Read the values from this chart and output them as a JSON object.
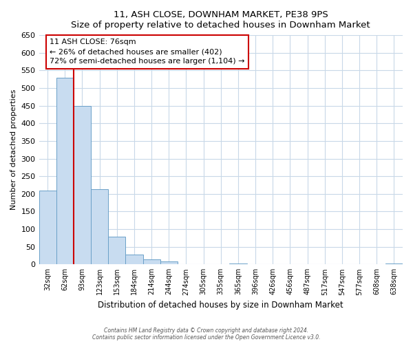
{
  "title": "11, ASH CLOSE, DOWNHAM MARKET, PE38 9PS",
  "subtitle": "Size of property relative to detached houses in Downham Market",
  "xlabel": "Distribution of detached houses by size in Downham Market",
  "ylabel": "Number of detached properties",
  "bin_labels": [
    "32sqm",
    "62sqm",
    "93sqm",
    "123sqm",
    "153sqm",
    "184sqm",
    "214sqm",
    "244sqm",
    "274sqm",
    "305sqm",
    "335sqm",
    "365sqm",
    "396sqm",
    "426sqm",
    "456sqm",
    "487sqm",
    "517sqm",
    "547sqm",
    "577sqm",
    "608sqm",
    "638sqm"
  ],
  "bar_heights": [
    210,
    530,
    450,
    213,
    78,
    27,
    14,
    8,
    0,
    0,
    0,
    3,
    0,
    0,
    0,
    0,
    0,
    1,
    0,
    0,
    2
  ],
  "bar_color": "#c8dcf0",
  "bar_edge_color": "#6aa0c8",
  "property_line_x": 1.5,
  "annotation_title": "11 ASH CLOSE: 76sqm",
  "annotation_line1": "← 26% of detached houses are smaller (402)",
  "annotation_line2": "72% of semi-detached houses are larger (1,104) →",
  "annotation_box_facecolor": "#ffffff",
  "annotation_box_edgecolor": "#cc0000",
  "vline_color": "#cc0000",
  "ylim": [
    0,
    650
  ],
  "yticks": [
    0,
    50,
    100,
    150,
    200,
    250,
    300,
    350,
    400,
    450,
    500,
    550,
    600,
    650
  ],
  "footer_line1": "Contains HM Land Registry data © Crown copyright and database right 2024.",
  "footer_line2": "Contains public sector information licensed under the Open Government Licence v3.0.",
  "bg_color": "#ffffff",
  "plot_bg_color": "#ffffff",
  "grid_color": "#c8d8e8"
}
